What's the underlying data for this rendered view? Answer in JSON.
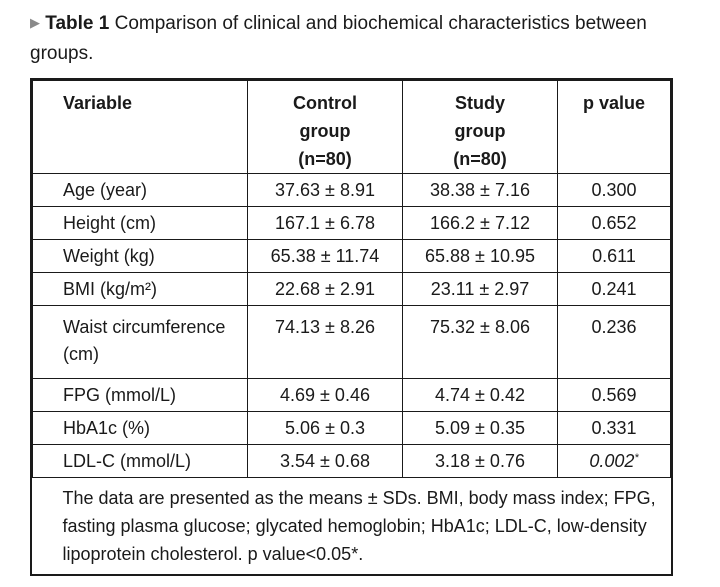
{
  "caption": {
    "marker": "▶",
    "label": "Table 1",
    "text": "Comparison of clinical and biochemical characteristics between groups."
  },
  "table": {
    "headers": {
      "variable": "Variable",
      "control_line1": "Control",
      "control_line2": "group",
      "control_line3": "(n=80)",
      "study_line1": "Study",
      "study_line2": "group",
      "study_line3": "(n=80)",
      "pvalue": "p value"
    },
    "rows": [
      {
        "variable": "Age (year)",
        "control": "37.63 ± 8.91",
        "study": "38.38 ± 7.16",
        "p": "0.300"
      },
      {
        "variable": "Height (cm)",
        "control": "167.1 ± 6.78",
        "study": "166.2 ± 7.12",
        "p": "0.652"
      },
      {
        "variable": "Weight (kg)",
        "control": "65.38 ± 11.74",
        "study": "65.88 ± 10.95",
        "p": "0.611"
      },
      {
        "variable": "BMI (kg/m²)",
        "control": "22.68 ± 2.91",
        "study": "23.11 ± 2.97",
        "p": "0.241"
      },
      {
        "variable": "Waist circumference (cm)",
        "control": "74.13 ± 8.26",
        "study": "75.32 ± 8.06",
        "p": "0.236"
      },
      {
        "variable": "FPG (mmol/L)",
        "control": "4.69 ± 0.46",
        "study": "4.74 ± 0.42",
        "p": "0.569"
      },
      {
        "variable": "HbA1c (%)",
        "control": "5.06 ± 0.3",
        "study": "5.09 ± 0.35",
        "p": "0.331"
      },
      {
        "variable": "LDL-C (mmol/L)",
        "control": "3.54 ± 0.68",
        "study": "3.18 ± 0.76",
        "p": "0.002",
        "p_marker": "*"
      }
    ],
    "footnote": "The data are presented as the means ± SDs. BMI, body mass index; FPG, fasting plasma glucose; glycated hemoglobin; HbA1c; LDL-C, low-density lipoprotein cholesterol. p value<0.05*."
  }
}
